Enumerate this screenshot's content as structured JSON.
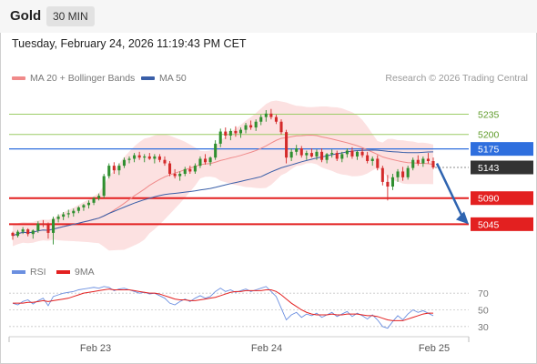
{
  "header": {
    "symbol": "Gold",
    "timeframe": "30 MIN"
  },
  "timestamp": "Tuesday, February 24, 2026 11:19:43 PM CET",
  "legend": {
    "ma20_label": "MA 20 + Bollinger Bands",
    "ma50_label": "MA 50",
    "copyright": "Research © 2026 Trading Central"
  },
  "colors": {
    "ma20": "#f08a8a",
    "ma50": "#3a5fa8",
    "band": "#fbdcdc",
    "up": "#2f8f2f",
    "down": "#d42a2a",
    "resistance": "#9ccc66",
    "support": "#e32020",
    "current": "#2f6fde",
    "last": "#333333",
    "rsi": "#6b8fe0",
    "rsi_ma": "#e32020",
    "arrow": "#2f64b0"
  },
  "chart_data": [
    {
      "type": "candlestick",
      "x_labels": [
        "Feb 23",
        "Feb 24",
        "Feb 25"
      ],
      "ylim": [
        5000,
        5275
      ],
      "levels": [
        {
          "value": 5235,
          "label": "5235",
          "kind": "resistance"
        },
        {
          "value": 5200,
          "label": "5200",
          "kind": "resistance"
        },
        {
          "value": 5175,
          "label": "5175",
          "kind": "current"
        },
        {
          "value": 5143,
          "label": "5143",
          "kind": "last"
        },
        {
          "value": 5090,
          "label": "5090",
          "kind": "support"
        },
        {
          "value": 5045,
          "label": "5045",
          "kind": "support"
        }
      ],
      "projection": {
        "from": 5150,
        "to": 5045
      },
      "ohlc": [
        [
          5030,
          5032,
          5018,
          5025
        ],
        [
          5025,
          5035,
          5022,
          5032
        ],
        [
          5032,
          5040,
          5028,
          5036
        ],
        [
          5036,
          5038,
          5024,
          5028
        ],
        [
          5028,
          5036,
          5020,
          5034
        ],
        [
          5034,
          5050,
          5030,
          5046
        ],
        [
          5046,
          5052,
          5040,
          5044
        ],
        [
          5044,
          5048,
          5020,
          5030
        ],
        [
          5030,
          5058,
          5010,
          5054
        ],
        [
          5054,
          5062,
          5048,
          5058
        ],
        [
          5058,
          5066,
          5052,
          5062
        ],
        [
          5062,
          5070,
          5056,
          5064
        ],
        [
          5064,
          5072,
          5058,
          5068
        ],
        [
          5068,
          5076,
          5064,
          5074
        ],
        [
          5074,
          5080,
          5068,
          5078
        ],
        [
          5078,
          5086,
          5072,
          5082
        ],
        [
          5082,
          5092,
          5078,
          5090
        ],
        [
          5090,
          5098,
          5086,
          5094
        ],
        [
          5094,
          5132,
          5090,
          5128
        ],
        [
          5128,
          5150,
          5124,
          5146
        ],
        [
          5146,
          5152,
          5132,
          5138
        ],
        [
          5138,
          5150,
          5130,
          5146
        ],
        [
          5146,
          5160,
          5142,
          5156
        ],
        [
          5156,
          5162,
          5150,
          5158
        ],
        [
          5158,
          5168,
          5152,
          5164
        ],
        [
          5164,
          5170,
          5156,
          5160
        ],
        [
          5160,
          5166,
          5152,
          5162
        ],
        [
          5162,
          5168,
          5156,
          5158
        ],
        [
          5158,
          5166,
          5150,
          5162
        ],
        [
          5162,
          5166,
          5152,
          5156
        ],
        [
          5156,
          5162,
          5146,
          5150
        ],
        [
          5150,
          5154,
          5128,
          5132
        ],
        [
          5132,
          5140,
          5124,
          5128
        ],
        [
          5128,
          5136,
          5120,
          5132
        ],
        [
          5132,
          5144,
          5128,
          5140
        ],
        [
          5140,
          5146,
          5132,
          5136
        ],
        [
          5136,
          5150,
          5132,
          5146
        ],
        [
          5146,
          5162,
          5142,
          5158
        ],
        [
          5158,
          5166,
          5148,
          5152
        ],
        [
          5152,
          5162,
          5146,
          5160
        ],
        [
          5160,
          5190,
          5156,
          5184
        ],
        [
          5184,
          5210,
          5178,
          5205
        ],
        [
          5205,
          5212,
          5192,
          5198
        ],
        [
          5198,
          5210,
          5190,
          5206
        ],
        [
          5206,
          5214,
          5196,
          5202
        ],
        [
          5202,
          5212,
          5194,
          5208
        ],
        [
          5208,
          5220,
          5202,
          5216
        ],
        [
          5216,
          5224,
          5208,
          5212
        ],
        [
          5212,
          5226,
          5206,
          5222
        ],
        [
          5222,
          5234,
          5216,
          5230
        ],
        [
          5230,
          5242,
          5222,
          5236
        ],
        [
          5236,
          5244,
          5226,
          5230
        ],
        [
          5230,
          5234,
          5218,
          5222
        ],
        [
          5222,
          5226,
          5200,
          5204
        ],
        [
          5204,
          5208,
          5150,
          5160
        ],
        [
          5160,
          5176,
          5154,
          5170
        ],
        [
          5170,
          5182,
          5164,
          5176
        ],
        [
          5176,
          5180,
          5160,
          5164
        ],
        [
          5164,
          5172,
          5156,
          5168
        ],
        [
          5168,
          5176,
          5160,
          5162
        ],
        [
          5162,
          5174,
          5156,
          5170
        ],
        [
          5170,
          5176,
          5152,
          5156
        ],
        [
          5156,
          5168,
          5150,
          5166
        ],
        [
          5166,
          5174,
          5160,
          5168
        ],
        [
          5168,
          5172,
          5154,
          5158
        ],
        [
          5158,
          5170,
          5152,
          5166
        ],
        [
          5166,
          5176,
          5160,
          5172
        ],
        [
          5172,
          5178,
          5158,
          5162
        ],
        [
          5162,
          5172,
          5156,
          5170
        ],
        [
          5170,
          5176,
          5160,
          5164
        ],
        [
          5164,
          5170,
          5150,
          5154
        ],
        [
          5154,
          5162,
          5146,
          5158
        ],
        [
          5158,
          5164,
          5138,
          5142
        ],
        [
          5142,
          5146,
          5112,
          5118
        ],
        [
          5118,
          5130,
          5086,
          5110
        ],
        [
          5110,
          5132,
          5104,
          5126
        ],
        [
          5126,
          5140,
          5118,
          5136
        ],
        [
          5136,
          5144,
          5120,
          5126
        ],
        [
          5126,
          5146,
          5122,
          5142
        ],
        [
          5142,
          5160,
          5138,
          5156
        ],
        [
          5156,
          5164,
          5146,
          5150
        ],
        [
          5150,
          5162,
          5144,
          5158
        ],
        [
          5158,
          5168,
          5150,
          5154
        ],
        [
          5154,
          5160,
          5140,
          5143
        ]
      ]
    },
    {
      "type": "line",
      "title": "RSI",
      "series": [
        {
          "name": "RSI"
        },
        {
          "name": "9MA"
        }
      ],
      "ylim": [
        20,
        80
      ],
      "y_ticks": [
        70,
        50,
        30
      ],
      "rsi": [
        58,
        56,
        60,
        62,
        57,
        61,
        64,
        55,
        66,
        68,
        70,
        71,
        72,
        74,
        75,
        76,
        77,
        76,
        78,
        77,
        73,
        75,
        76,
        74,
        72,
        70,
        71,
        69,
        70,
        67,
        64,
        58,
        56,
        60,
        63,
        60,
        64,
        67,
        64,
        66,
        72,
        76,
        72,
        74,
        71,
        73,
        75,
        72,
        74,
        76,
        78,
        72,
        66,
        52,
        38,
        44,
        47,
        41,
        45,
        43,
        46,
        41,
        44,
        47,
        42,
        45,
        48,
        42,
        46,
        43,
        39,
        44,
        38,
        30,
        28,
        36,
        43,
        38,
        45,
        50,
        47,
        49,
        46,
        43
      ],
      "rsi_ma": [
        58,
        58,
        58,
        59,
        59,
        60,
        61,
        60,
        61,
        62,
        63,
        64,
        66,
        68,
        70,
        71,
        72,
        73,
        74,
        75,
        74,
        74,
        74,
        74,
        73,
        72,
        71,
        70,
        70,
        69,
        67,
        65,
        63,
        62,
        62,
        61,
        61,
        62,
        63,
        64,
        65,
        67,
        69,
        71,
        72,
        72,
        73,
        73,
        73,
        73,
        74,
        74,
        72,
        68,
        63,
        58,
        54,
        50,
        47,
        45,
        44,
        44,
        44,
        45,
        44,
        44,
        45,
        45,
        45,
        44,
        43,
        43,
        42,
        40,
        38,
        37,
        37,
        37,
        39,
        41,
        43,
        45,
        46,
        46
      ]
    }
  ]
}
